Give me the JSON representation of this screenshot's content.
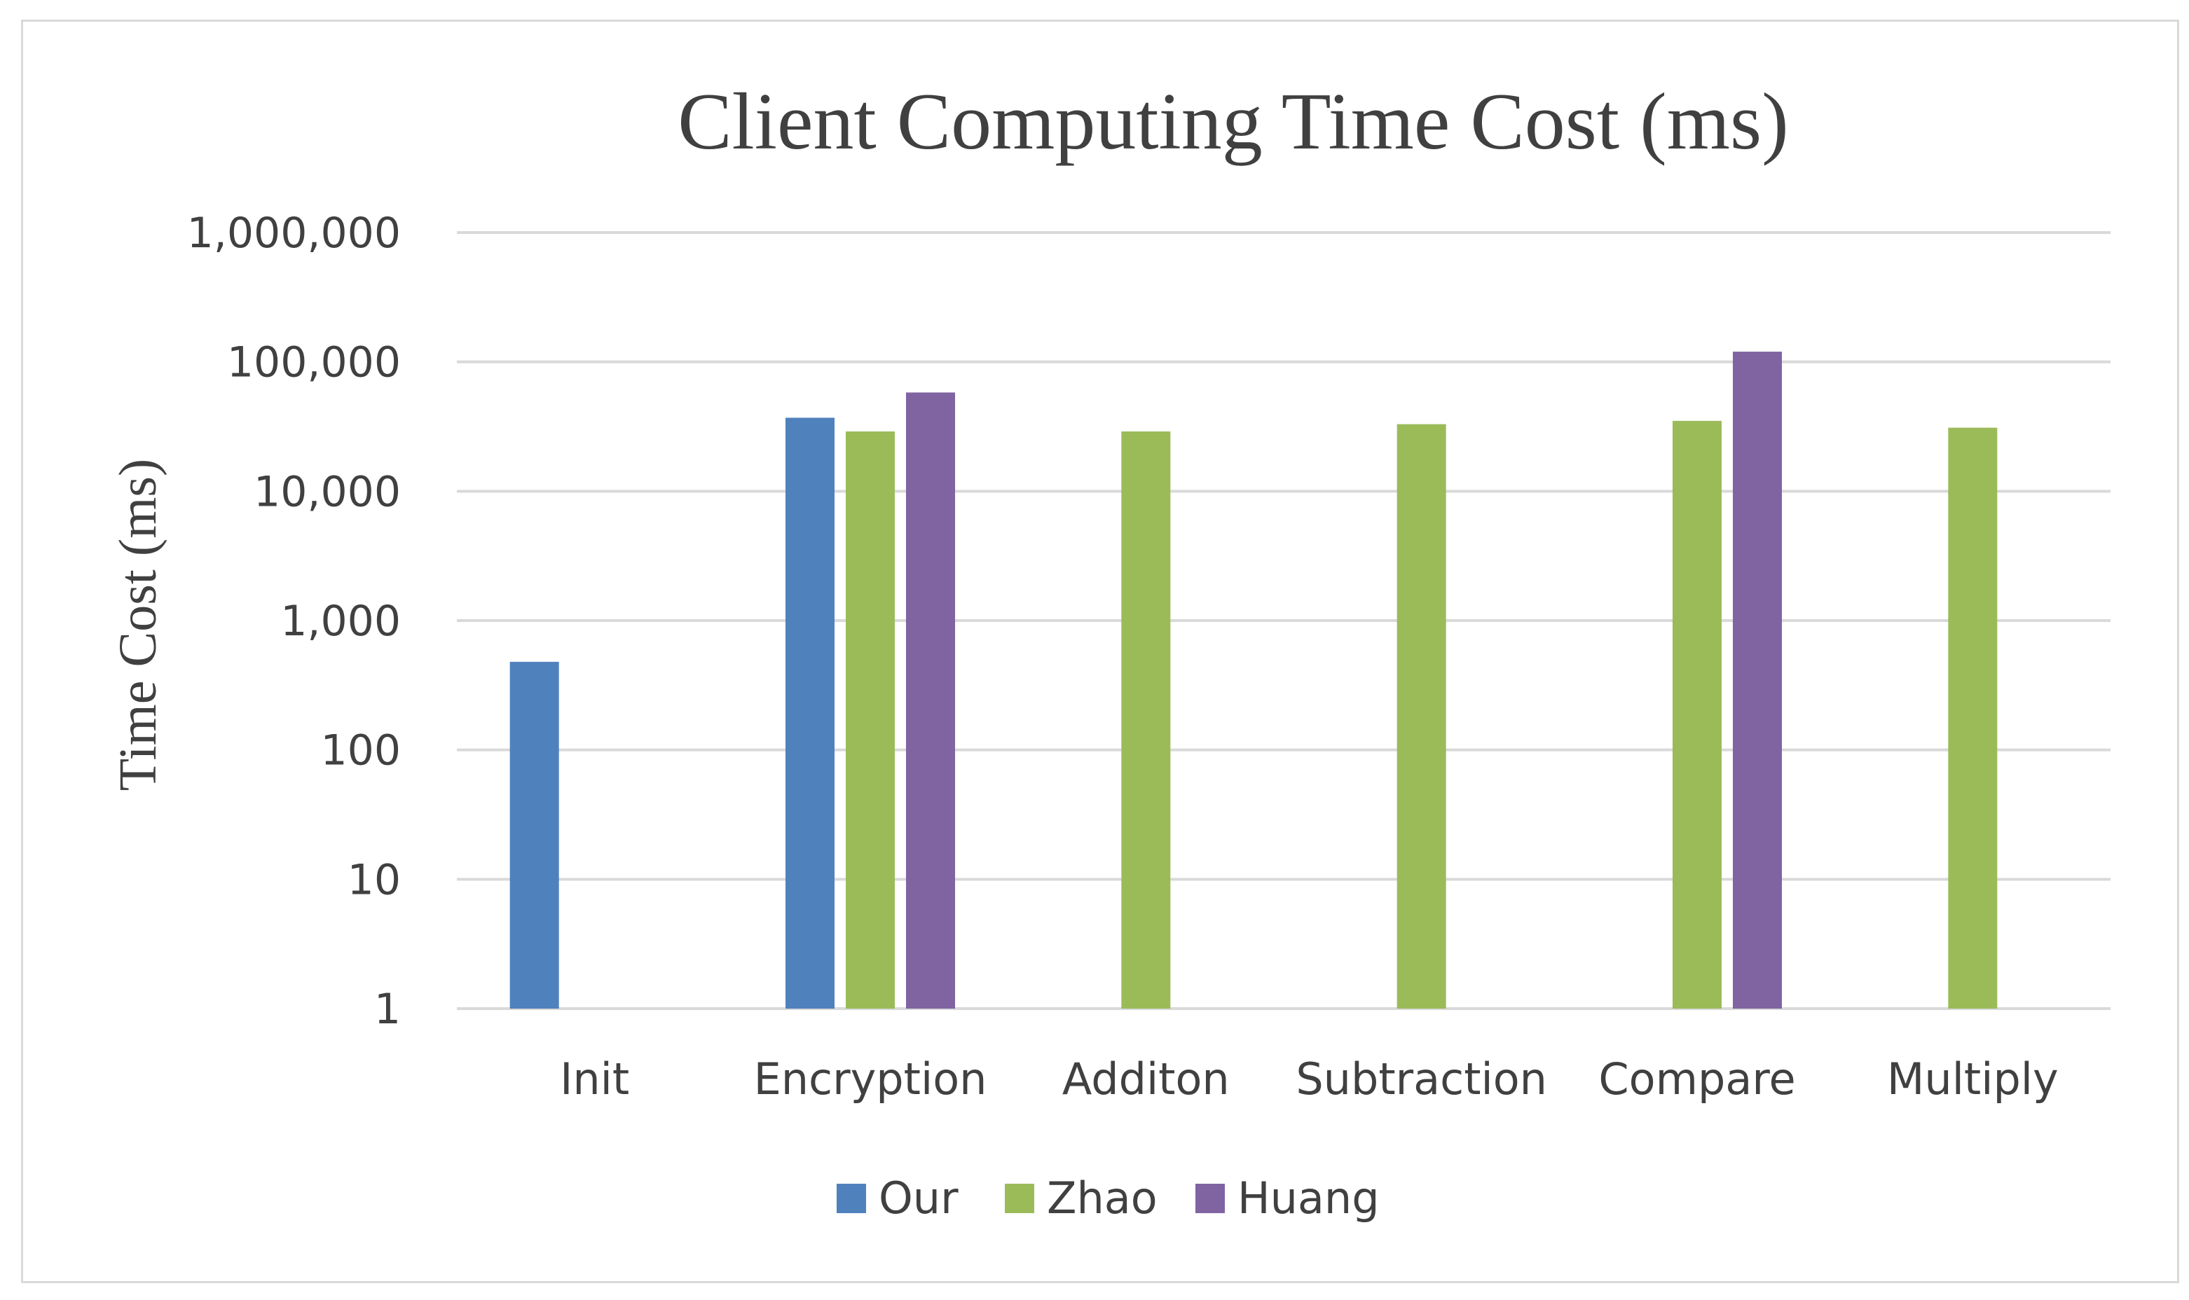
{
  "chart_data": {
    "type": "bar",
    "title": "Client Computing Time Cost (ms)",
    "xlabel": "",
    "ylabel": "Time Cost (ms)",
    "yscale": "log",
    "ylim": [
      1,
      1000000
    ],
    "yticks": [
      1,
      10,
      100,
      1000,
      10000,
      100000,
      1000000
    ],
    "ytick_labels": [
      "1",
      "10",
      "100",
      "1,000",
      "10,000",
      "100,000",
      "1,000,000"
    ],
    "categories": [
      "Init",
      "Encryption",
      "Additon",
      "Subtraction",
      "Compare",
      "Multiply"
    ],
    "series": [
      {
        "name": "Our",
        "color": "#4f81bd",
        "values": [
          480,
          37000,
          null,
          null,
          null,
          null
        ]
      },
      {
        "name": "Zhao",
        "color": "#9bbb59",
        "values": [
          null,
          29000,
          29000,
          33000,
          35000,
          31000
        ]
      },
      {
        "name": "Huang",
        "color": "#8064a2",
        "values": [
          null,
          58000,
          null,
          null,
          120000,
          null
        ]
      }
    ],
    "grid": true,
    "legend_position": "bottom"
  }
}
